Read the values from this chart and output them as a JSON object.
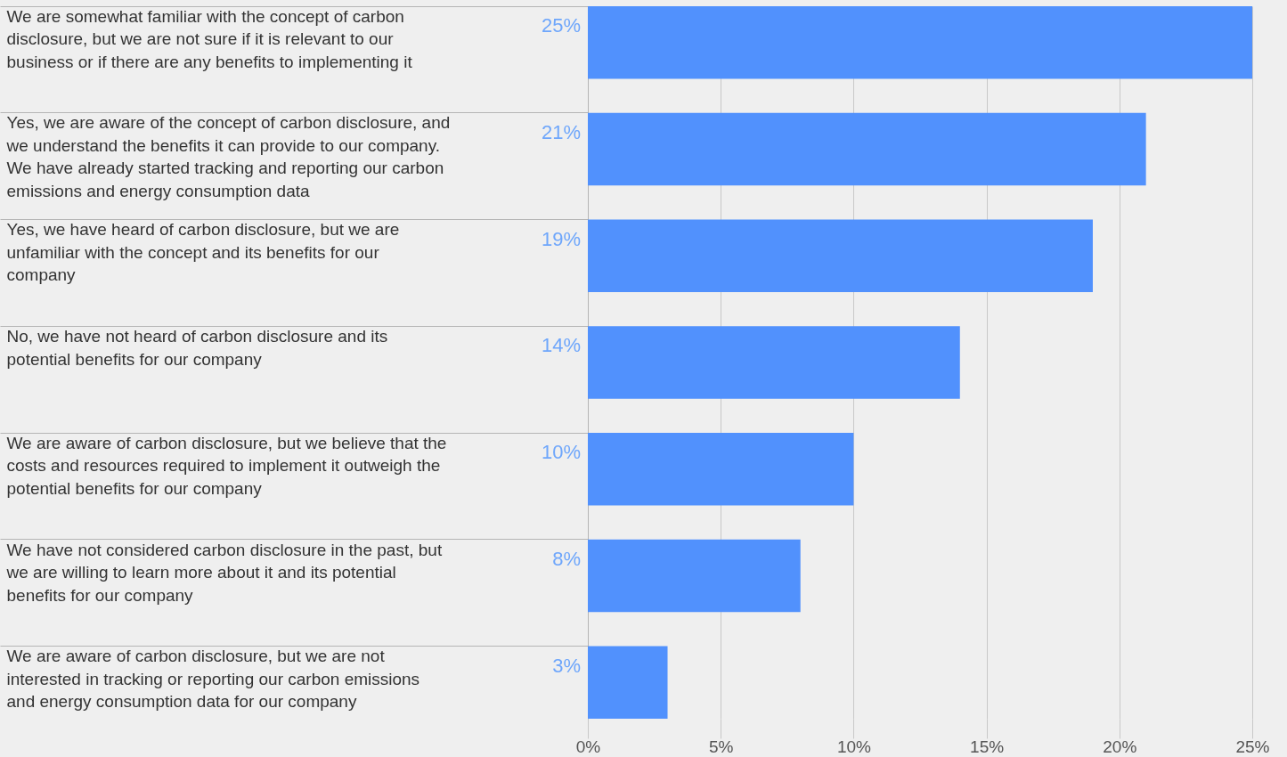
{
  "chart_data": {
    "type": "bar",
    "orientation": "horizontal",
    "categories": [
      "We are somewhat familiar with the concept of carbon disclosure, but we are not sure if it is relevant to our business or if there are any benefits to implementing it",
      "Yes, we are aware of the concept of carbon disclosure, and we understand the benefits it can provide to our company. We have already started tracking and reporting our carbon emissions and energy consumption data",
      "Yes, we have heard of carbon disclosure, but we are unfamiliar with the concept and its benefits for our company",
      "No, we have not heard of carbon disclosure and its potential benefits for our company",
      "We are aware of carbon disclosure, but we believe that the costs and resources required to implement it outweigh the potential benefits for our company",
      "We have not considered carbon disclosure in the past, but we are willing to learn more about it and its potential benefits for our company",
      "We are aware of carbon disclosure, but we are not interested in tracking or reporting our carbon emissions and energy consumption data for our company"
    ],
    "values": [
      25,
      21,
      19,
      14,
      10,
      8,
      3
    ],
    "value_labels": [
      "25%",
      "21%",
      "19%",
      "14%",
      "10%",
      "8%",
      "3%"
    ],
    "color": "#5191fd",
    "xlim": [
      0,
      25
    ],
    "xticks": [
      {
        "value": 0,
        "label": "0%"
      },
      {
        "value": 5,
        "label": "5%"
      },
      {
        "value": 10,
        "label": "10%"
      },
      {
        "value": 15,
        "label": "15%"
      },
      {
        "value": 20,
        "label": "20%"
      },
      {
        "value": 25,
        "label": "25%"
      }
    ],
    "grid": "x"
  }
}
